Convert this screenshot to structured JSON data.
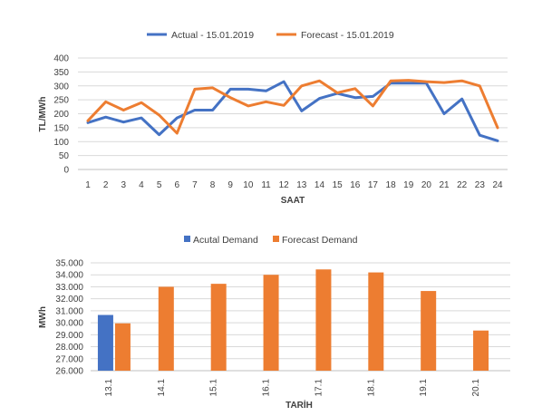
{
  "colors": {
    "blue": "#4472C4",
    "orange": "#ED7D31",
    "grid": "#D9D9D9",
    "axis": "#BFBFBF"
  },
  "chart_data": [
    {
      "type": "line",
      "xlabel": "SAAT",
      "ylabel": "TL/MWh",
      "ylim": [
        0,
        400
      ],
      "yticks": [
        "0",
        "50",
        "100",
        "150",
        "200",
        "250",
        "300",
        "350",
        "400"
      ],
      "legend_position": "top",
      "grid": true,
      "x": [
        "1",
        "2",
        "3",
        "4",
        "5",
        "6",
        "7",
        "8",
        "9",
        "10",
        "11",
        "12",
        "13",
        "14",
        "15",
        "16",
        "17",
        "18",
        "19",
        "20",
        "21",
        "22",
        "23",
        "24"
      ],
      "series": [
        {
          "name": "Actual - 15.01.2019",
          "color": "#4472C4",
          "values": [
            168,
            188,
            170,
            185,
            125,
            185,
            213,
            213,
            288,
            288,
            282,
            315,
            210,
            255,
            273,
            258,
            262,
            310,
            310,
            310,
            200,
            253,
            123,
            103
          ]
        },
        {
          "name": "Forecast - 15.01.2019",
          "color": "#ED7D31",
          "values": [
            175,
            243,
            213,
            240,
            195,
            130,
            288,
            293,
            258,
            228,
            243,
            230,
            300,
            318,
            275,
            290,
            228,
            318,
            320,
            315,
            312,
            318,
            300,
            150
          ]
        }
      ]
    },
    {
      "type": "bar",
      "xlabel": "TARİH",
      "ylabel": "MWh",
      "ylim": [
        26000,
        35000
      ],
      "yticks": [
        "26.000",
        "27.000",
        "28.000",
        "29.000",
        "30.000",
        "31.000",
        "32.000",
        "33.000",
        "34.000",
        "35.000"
      ],
      "legend_position": "top",
      "grid": true,
      "categories": [
        "13.1",
        "14.1",
        "15.1",
        "16.1",
        "17.1",
        "18.1",
        "19.1",
        "20.1"
      ],
      "series": [
        {
          "name": "Acutal Demand",
          "color": "#4472C4",
          "values": [
            30650,
            null,
            null,
            null,
            null,
            null,
            null,
            null
          ]
        },
        {
          "name": "Forecast Demand",
          "color": "#ED7D31",
          "values": [
            29950,
            33000,
            33250,
            34000,
            34450,
            34200,
            32650,
            29350
          ]
        }
      ]
    }
  ]
}
